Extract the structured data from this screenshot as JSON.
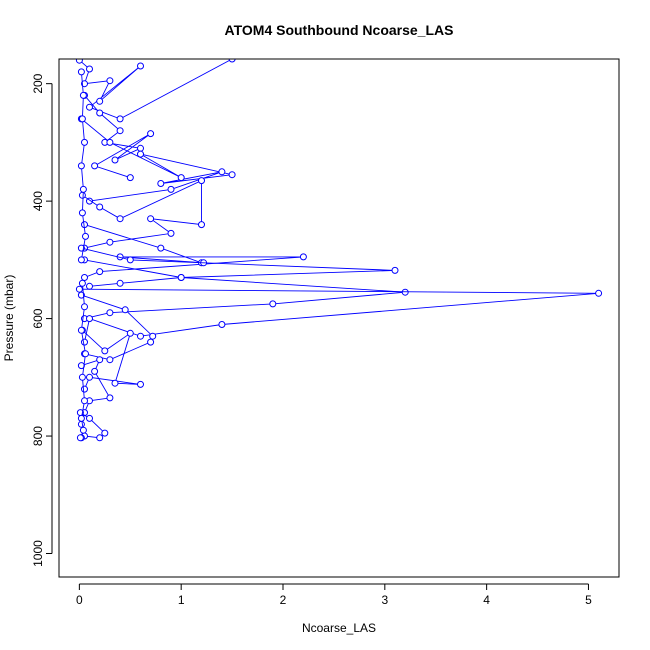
{
  "chart_data": {
    "type": "line",
    "title": "ATOM4 Southbound Ncoarse_LAS",
    "xlabel": "Ncoarse_LAS",
    "ylabel": "Pressure (mbar)",
    "xlim": [
      -0.2,
      5.3
    ],
    "ylim": [
      1040,
      158
    ],
    "y_inverted": true,
    "x_ticks": [
      0,
      1,
      2,
      3,
      4,
      5
    ],
    "y_ticks": [
      200,
      400,
      600,
      800,
      1000
    ],
    "grid": false,
    "colors": {
      "series": "#0000ff",
      "axis": "#000000"
    },
    "series": [
      {
        "x": [
          0.0,
          0.1,
          0.05,
          0.3,
          0.2,
          0.6,
          0.1,
          0.4,
          1.5
        ],
        "y": [
          160,
          175,
          200,
          195,
          230,
          170,
          240,
          260,
          158
        ]
      },
      {
        "x": [
          0.05,
          0.2,
          0.4,
          0.25,
          0.6,
          0.35,
          0.7,
          0.15,
          0.5
        ],
        "y": [
          220,
          250,
          280,
          300,
          310,
          330,
          285,
          340,
          360
        ]
      },
      {
        "x": [
          0.02,
          0.3,
          1.0,
          0.6,
          1.5,
          0.8,
          1.4,
          0.9,
          0.1
        ],
        "y": [
          260,
          300,
          360,
          320,
          355,
          370,
          350,
          380,
          400
        ]
      },
      {
        "x": [
          0.03,
          0.2,
          0.4,
          1.2,
          1.2,
          0.7,
          0.9,
          0.3,
          0.05
        ],
        "y": [
          390,
          410,
          430,
          365,
          440,
          430,
          455,
          470,
          480
        ]
      },
      {
        "x": [
          0.05,
          0.8,
          1.2,
          1.22,
          0.4,
          2.2,
          0.2,
          0.05
        ],
        "y": [
          440,
          480,
          505,
          505,
          495,
          495,
          520,
          530
        ]
      },
      {
        "x": [
          0.02,
          0.5,
          3.1,
          1.0,
          0.4,
          0.1
        ],
        "y": [
          480,
          500,
          518,
          530,
          540,
          545
        ]
      },
      {
        "x": [
          0.05,
          1.0,
          3.2,
          1.9,
          0.3,
          0.05
        ],
        "y": [
          500,
          530,
          555,
          575,
          590,
          600
        ]
      },
      {
        "x": [
          0.0,
          5.1,
          1.4,
          0.6,
          0.1,
          0.05
        ],
        "y": [
          550,
          557,
          610,
          630,
          600,
          640
        ]
      },
      {
        "x": [
          0.02,
          0.45,
          0.72,
          0.7,
          0.3,
          0.05
        ],
        "y": [
          560,
          585,
          630,
          640,
          670,
          660
        ]
      },
      {
        "x": [
          0.03,
          0.25,
          0.5,
          0.35,
          0.6,
          0.1,
          0.05
        ],
        "y": [
          620,
          655,
          625,
          710,
          712,
          700,
          720
        ]
      },
      {
        "x": [
          0.02,
          0.2,
          0.15,
          0.3,
          0.1,
          0.05,
          0.02
        ],
        "y": [
          680,
          670,
          690,
          735,
          740,
          760,
          780
        ]
      },
      {
        "x": [
          0.01,
          0.1,
          0.25,
          0.2,
          0.05,
          0.02
        ],
        "y": [
          760,
          770,
          795,
          803,
          800,
          803
        ]
      },
      {
        "x": [
          0.02,
          0.04,
          0.03,
          0.05,
          0.02,
          0.04,
          0.03,
          0.06,
          0.02
        ],
        "y": [
          180,
          220,
          260,
          300,
          340,
          380,
          420,
          460,
          500
        ]
      },
      {
        "x": [
          0.03,
          0.05,
          0.02,
          0.06,
          0.03,
          0.05,
          0.02,
          0.04,
          0.01
        ],
        "y": [
          540,
          580,
          620,
          660,
          700,
          740,
          770,
          790,
          803
        ]
      }
    ]
  }
}
